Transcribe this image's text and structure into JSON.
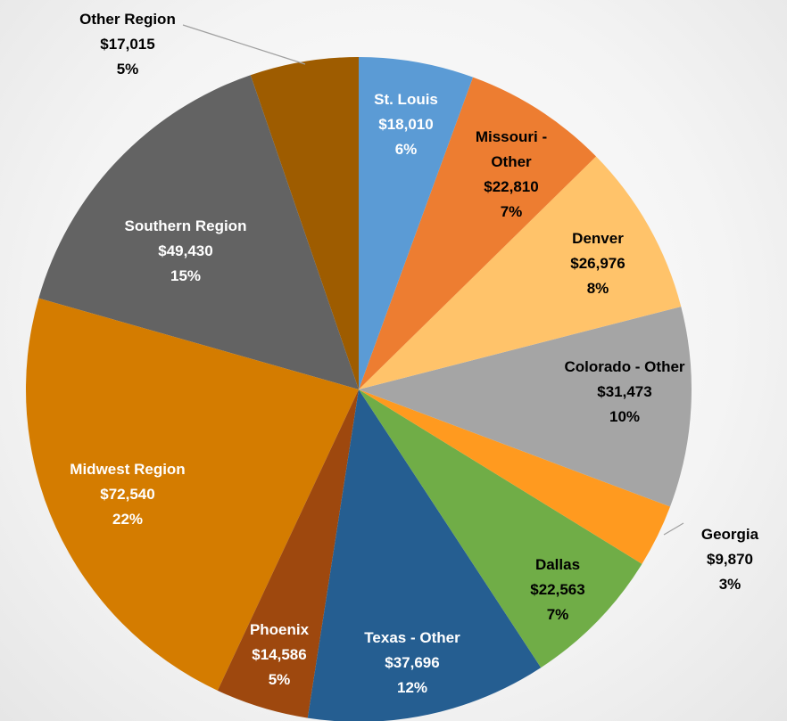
{
  "chart_data": {
    "type": "pie",
    "categories": [
      "St. Louis",
      "Missouri - Other",
      "Denver",
      "Colorado - Other",
      "Georgia",
      "Dallas",
      "Texas - Other",
      "Phoenix",
      "Midwest Region",
      "Southern Region",
      "Other Region"
    ],
    "values": [
      18010,
      22810,
      26976,
      31473,
      9870,
      22563,
      37696,
      14586,
      72540,
      49430,
      17015
    ],
    "value_labels": [
      "$18,010",
      "$22,810",
      "$26,976",
      "$31,473",
      "$9,870",
      "$22,563",
      "$37,696",
      "$14,586",
      "$72,540",
      "$49,430",
      "$17,015"
    ],
    "percent_labels": [
      "6%",
      "7%",
      "8%",
      "10%",
      "3%",
      "7%",
      "12%",
      "5%",
      "22%",
      "15%",
      "5%"
    ],
    "colors": [
      "#5b9bd5",
      "#ed7d31",
      "#ffc36a",
      "#a5a5a5",
      "#ff9a1f",
      "#70ad47",
      "#255e91",
      "#9e480e",
      "#d47c00",
      "#636363",
      "#9e5c00"
    ]
  }
}
